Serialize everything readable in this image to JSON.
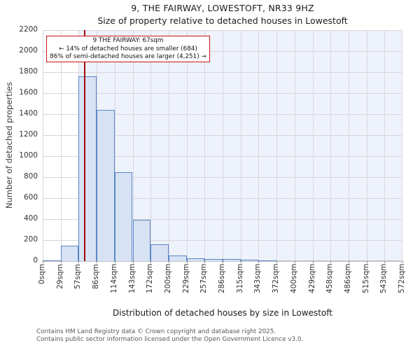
{
  "header": {
    "title": "9, THE FAIRWAY, LOWESTOFT, NR33 9HZ",
    "subtitle": "Size of property relative to detached houses in Lowestoft"
  },
  "chart_data": {
    "type": "bar",
    "title": "9, THE FAIRWAY, LOWESTOFT, NR33 9HZ",
    "subtitle": "Size of property relative to detached houses in Lowestoft",
    "xlabel": "Distribution of detached houses by size in Lowestoft",
    "ylabel": "Number of detached properties",
    "bin_edges_sqm": [
      0,
      29,
      57,
      86,
      114,
      143,
      172,
      200,
      229,
      257,
      286,
      315,
      343,
      372,
      400,
      429,
      458,
      486,
      515,
      543,
      572
    ],
    "bin_labels": [
      "0sqm",
      "29sqm",
      "57sqm",
      "86sqm",
      "114sqm",
      "143sqm",
      "172sqm",
      "200sqm",
      "229sqm",
      "257sqm",
      "286sqm",
      "315sqm",
      "343sqm",
      "372sqm",
      "400sqm",
      "429sqm",
      "458sqm",
      "486sqm",
      "515sqm",
      "543sqm",
      "572sqm"
    ],
    "counts": [
      10,
      150,
      1760,
      1440,
      850,
      395,
      160,
      55,
      30,
      20,
      18,
      12,
      8,
      0,
      0,
      0,
      0,
      0,
      0,
      0
    ],
    "ylim": [
      0,
      2200
    ],
    "ytick_step": 200,
    "grid": "on",
    "legend": "none",
    "marker_value_sqm": 67,
    "highlight_from_sqm": 57
  },
  "annotation": {
    "line1": "9 THE FAIRWAY: 67sqm",
    "line2": "← 14% of detached houses are smaller (684)",
    "line3": "86% of semi-detached houses are larger (4,251) →"
  },
  "colors": {
    "bar_fill": "#d7e2f4",
    "bar_stroke": "#5b87c7",
    "marker_red": "#9e0b0b",
    "annotation_border": "#cc1111",
    "highlight_bg": "#eef2fb",
    "grid": "#d7d7db"
  },
  "footer": {
    "line1": "Contains HM Land Registry data © Crown copyright and database right 2025.",
    "line2": "Contains public sector information licensed under the Open Government Licence v3.0."
  }
}
